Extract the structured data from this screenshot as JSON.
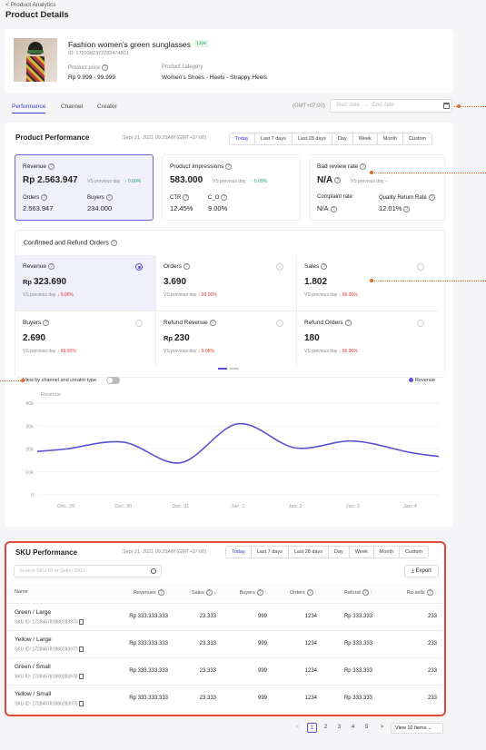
{
  "breadcrumb": "< Product Analytics",
  "page_title": "Product Details",
  "product": {
    "name": "Fashion women's green sunglasses",
    "status": "Live",
    "id": "ID: 1729382372782474801",
    "price_label": "Product price",
    "price": "Rp 9.999 - 99.999",
    "category_label": "Product category",
    "category": "Women's Shoes - Heels - Strappy Heels"
  },
  "tabs": [
    "Performance",
    "Channel",
    "Creator"
  ],
  "timezone": "(GMT+07:00)",
  "date_range": {
    "start_placeholder": "Start date",
    "sep": "→",
    "end_placeholder": "End date"
  },
  "performance": {
    "title": "Product Performance",
    "timestamp": "Sept 21, 2021 09:29AM (GMT+07:00)",
    "periods": [
      "Today",
      "Last 7 days",
      "Last 28 days",
      "Day",
      "Week",
      "Month",
      "Custom"
    ],
    "revenue": {
      "label": "Revenue",
      "value": "Rp 2.563.947",
      "compare": "VS previous day",
      "change": "↑ 0.09%",
      "orders_label": "Orders",
      "orders": "2.563.947",
      "buyers_label": "Buyers",
      "buyers": "234.000"
    },
    "impressions": {
      "label": "Product Impressions",
      "value": "583.000",
      "compare": "VS previous day",
      "change": "↑ 0.09%",
      "ctr_label": "CTR",
      "ctr": "12.45%",
      "co_label": "C_O",
      "co": "9.00%"
    },
    "bad_review": {
      "label": "Bad review rate",
      "value": "N/A",
      "compare": "VS previous day",
      "change": "--",
      "complaint_label": "Complaint rate",
      "complaint": "N/A",
      "return_label": "Quality Return Rate",
      "return_rate": "12.01%"
    }
  },
  "refund": {
    "title": "Confirmed and Refund Orders",
    "compare": "VS previous day",
    "cells": [
      {
        "label": "Revenue",
        "prefix": "Rp",
        "value": "323.690",
        "change": "↓ 9.06%",
        "selected": true
      },
      {
        "label": "Orders",
        "prefix": "",
        "value": "3.690",
        "change": "↓ 99.06%",
        "selected": false
      },
      {
        "label": "Sales",
        "prefix": "",
        "value": "1.802",
        "change": "↓ 99.06%",
        "selected": false
      },
      {
        "label": "Buyers",
        "prefix": "",
        "value": "2.690",
        "change": "↓ 99.06%",
        "selected": false
      },
      {
        "label": "Refund Revenue",
        "prefix": "Rp",
        "value": "230",
        "change": "↓ 9.06%",
        "selected": false
      },
      {
        "label": "Refund Orders",
        "prefix": "",
        "value": "180",
        "change": "↓ 99.06%",
        "selected": false
      }
    ],
    "toggle_label": "View by channel and creator type"
  },
  "chart_data": {
    "type": "line",
    "ylabel": "Revenue",
    "legend": "Revenue",
    "color": "#5a52d5",
    "yticks": [
      "40k",
      "30k",
      "20k",
      "10k",
      "0"
    ],
    "ylim": [
      0,
      40000
    ],
    "categories": [
      "Dec. 29",
      "Dec. 30",
      "Dec. 31",
      "Jan. 1",
      "Jan. 2",
      "Jan. 3",
      "Jan. 4"
    ],
    "series": [
      {
        "name": "Revenue",
        "values": [
          20000,
          23000,
          14000,
          31000,
          20500,
          23500,
          18500
        ]
      }
    ]
  },
  "sku": {
    "title": "SKU Performance",
    "timestamp": "Sept 21, 2021 09:29AM (GMT+07:00)",
    "periods": [
      "Today",
      "Last 7 days",
      "Last 28 days",
      "Day",
      "Week",
      "Month",
      "Custom"
    ],
    "search_placeholder": "Search SKU ID or Seller SKU",
    "export_label": "Export",
    "columns": [
      "Name",
      "Revenues",
      "Sales",
      "Buyers",
      "Orders",
      "Refund",
      "Re-sells"
    ],
    "rows": [
      {
        "name": "Green / Large",
        "sku_id": "SKU ID: 172846781980283970",
        "revenue": "Rp 333.333.333",
        "sales": "23.333",
        "buyers": "999",
        "orders": "1234",
        "refund": "Rp 333.333",
        "resells": "233"
      },
      {
        "name": "Yellow / Large",
        "sku_id": "SKU ID: 172846781980283977",
        "revenue": "Rp 333.333.333",
        "sales": "23.333",
        "buyers": "999",
        "orders": "1234",
        "refund": "Rp 333.333",
        "resells": "233"
      },
      {
        "name": "Green / Small",
        "sku_id": "SKU ID: 172846781980283978",
        "revenue": "Rp 333.333.333",
        "sales": "23.333",
        "buyers": "999",
        "orders": "1234",
        "refund": "Rp 333.333",
        "resells": "233"
      },
      {
        "name": "Yellow / Small",
        "sku_id": "SKU ID: 172846781980283975",
        "revenue": "Rp 333.333.333",
        "sales": "23.333",
        "buyers": "999",
        "orders": "1234",
        "refund": "Rp 333.333",
        "resells": "233"
      }
    ]
  },
  "pagination": {
    "prev": "<",
    "pages": [
      "1",
      "2",
      "3",
      "4",
      "5"
    ],
    "next": ">",
    "page_size": "View 10 Items"
  }
}
